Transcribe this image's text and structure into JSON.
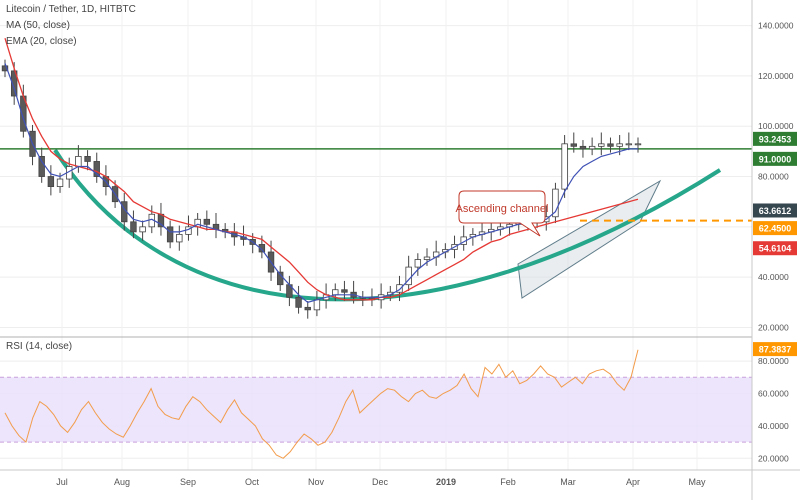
{
  "header": {
    "title": "Litecoin / Tether, 1D, HITBTC",
    "ma_label": "MA (50, close)",
    "ema_label": "EMA (20, close)"
  },
  "rsi_label": "RSI (14, close)",
  "chart_data": [
    {
      "type": "line",
      "title": "Litecoin / Tether, 1D, HITBTC",
      "x_ticks": [
        "Jul",
        "Aug",
        "Sep",
        "Oct",
        "Nov",
        "Dec",
        "2019",
        "Feb",
        "Mar",
        "Apr",
        "May"
      ],
      "y_ticks": [
        "140.0000",
        "120.0000",
        "100.0000",
        "80.0000",
        "60.0000",
        "40.0000",
        "20.0000"
      ],
      "ylim": [
        17,
        147
      ],
      "price_labels": [
        {
          "text": "93.2453",
          "color": "#2e7d32",
          "text_color": "#ffffff",
          "value": 93.2453
        },
        {
          "text": "91.0000",
          "color": "#2e7d32",
          "text_color": "#ffffff",
          "value": 91.0
        },
        {
          "text": "63.6612",
          "color": "#37474f",
          "text_color": "#ffffff",
          "value": 63.6612
        },
        {
          "text": "62.4500",
          "color": "#ff9800",
          "text_color": "#ffffff",
          "value": 62.45
        },
        {
          "text": "54.6104",
          "color": "#e53935",
          "text_color": "#ffffff",
          "value": 54.6104
        }
      ],
      "horizontal_lines": [
        {
          "value": 91.0,
          "color": "#2e7d32",
          "style": "solid"
        },
        {
          "value": 62.45,
          "color": "#ff9800",
          "style": "dashed"
        }
      ],
      "annotation": "Ascending channel",
      "close_series": {
        "name": "",
        "x_index": [
          0,
          4,
          8,
          12,
          16,
          20,
          24,
          28,
          32,
          36,
          40,
          44,
          48,
          52,
          56,
          60,
          64,
          68,
          72,
          76,
          80,
          84,
          88,
          92,
          96,
          100,
          104,
          108,
          112,
          116,
          120,
          124,
          128,
          132,
          136,
          140,
          144,
          148,
          152,
          156,
          160,
          164,
          168,
          172,
          176,
          180,
          184,
          188,
          192,
          196,
          200,
          204,
          208,
          212,
          216,
          220,
          224,
          228,
          232,
          236,
          240,
          244,
          248,
          252,
          256,
          260,
          264,
          268,
          272,
          276
        ],
        "values": [
          122,
          112,
          98,
          88,
          80,
          76,
          79,
          84,
          88,
          86,
          80,
          76,
          70,
          62,
          58,
          60,
          65,
          60,
          54,
          57,
          60,
          63,
          61,
          59,
          58,
          56,
          55,
          53,
          50,
          42,
          37,
          32,
          28,
          27,
          31,
          33,
          35,
          34,
          32,
          32,
          31,
          33,
          34,
          37,
          44,
          47,
          48,
          50,
          51,
          53,
          56,
          57,
          58,
          59,
          60,
          61,
          62,
          63,
          62,
          64,
          75,
          93,
          92,
          91,
          92,
          93,
          92,
          93,
          93,
          93
        ]
      },
      "ma50_series": {
        "name": "MA (50, close)",
        "color": "#e53935",
        "values": [
          135,
          123,
          112,
          103,
          96,
          90,
          87,
          85,
          84,
          83,
          82,
          80,
          77,
          74,
          70,
          68,
          66,
          65,
          63,
          62,
          61,
          60,
          59,
          59,
          58,
          58,
          57,
          56,
          55,
          52,
          49,
          46,
          42,
          38,
          35,
          33,
          32,
          31,
          31,
          31,
          31,
          32,
          32,
          33,
          35,
          37,
          39,
          41,
          43,
          45,
          47,
          50,
          52,
          54,
          55,
          57,
          58,
          59,
          60,
          61,
          62,
          63,
          64,
          65,
          66,
          67,
          68,
          69,
          70,
          71
        ]
      },
      "ema20_series": {
        "name": "EMA (20, close)",
        "color": "#3f51b5",
        "values": [
          125,
          115,
          103,
          93,
          86,
          81,
          80,
          82,
          84,
          84,
          81,
          78,
          73,
          67,
          63,
          62,
          63,
          61,
          58,
          58,
          59,
          61,
          60,
          59,
          58,
          57,
          56,
          54,
          51,
          46,
          41,
          37,
          33,
          30,
          31,
          32,
          33,
          33,
          33,
          32,
          32,
          32,
          33,
          35,
          39,
          43,
          46,
          48,
          50,
          52,
          54,
          56,
          57,
          58,
          59,
          60,
          61,
          62,
          62,
          63,
          66,
          74,
          80,
          84,
          86,
          88,
          89,
          90,
          91,
          91
        ]
      }
    },
    {
      "type": "line",
      "title": "RSI (14, close)",
      "y_ticks": [
        "80.0000",
        "60.0000",
        "40.0000",
        "20.0000"
      ],
      "ylim": [
        14,
        93
      ],
      "band": [
        30,
        70
      ],
      "last_value_label": {
        "text": "87.3837",
        "color": "#ff9800",
        "text_color": "#ffffff",
        "value": 87.3837
      },
      "rsi_series": {
        "name": "RSI (14, close)",
        "color": "#f39c4b",
        "values": [
          48,
          40,
          34,
          30,
          45,
          55,
          52,
          47,
          40,
          36,
          42,
          50,
          55,
          48,
          42,
          38,
          35,
          33,
          40,
          48,
          55,
          63,
          52,
          47,
          45,
          44,
          52,
          58,
          55,
          50,
          46,
          42,
          50,
          56,
          48,
          44,
          40,
          32,
          28,
          22,
          20,
          24,
          30,
          35,
          32,
          28,
          30,
          36,
          45,
          55,
          62,
          48,
          52,
          56,
          60,
          63,
          62,
          58,
          55,
          60,
          62,
          58,
          57,
          60,
          62,
          65,
          72,
          63,
          58,
          76,
          72,
          78,
          70,
          74,
          66,
          68,
          72,
          77,
          72,
          70,
          64,
          67,
          70,
          66,
          72,
          74,
          75,
          72,
          66,
          62,
          70,
          87
        ]
      }
    }
  ]
}
